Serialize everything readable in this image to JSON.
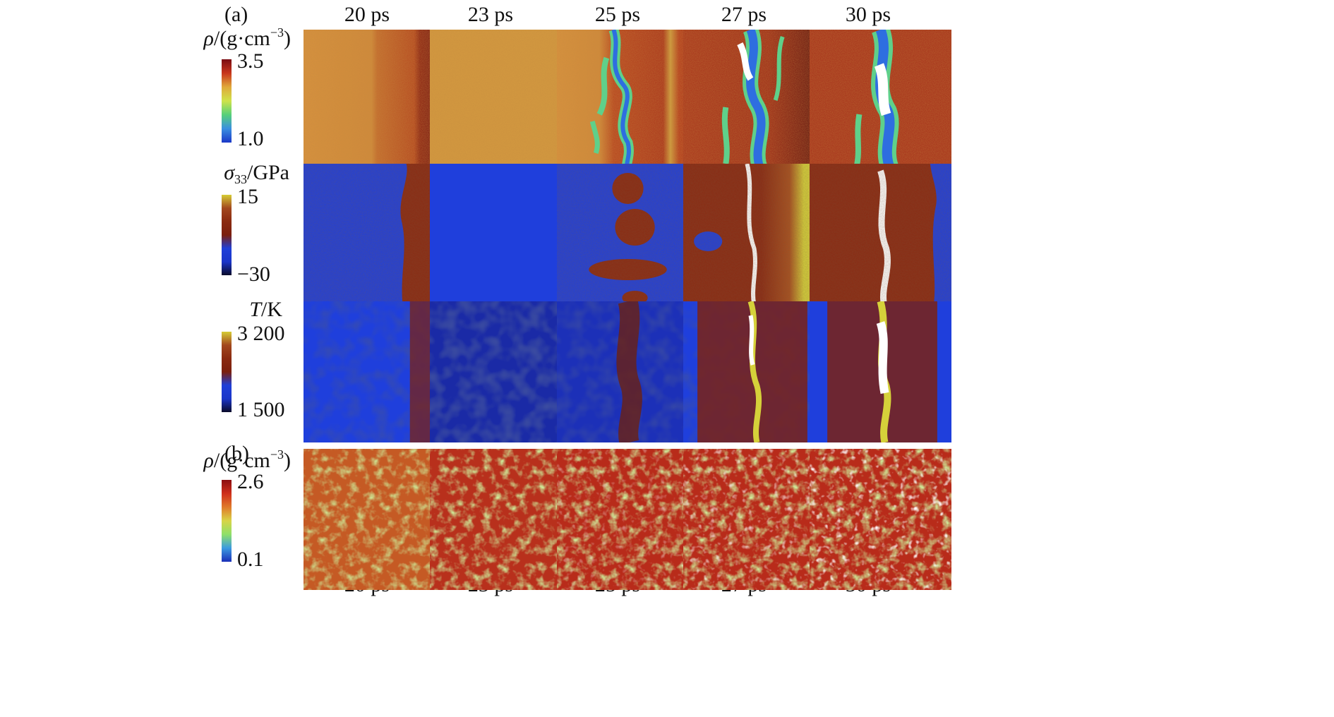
{
  "figure": {
    "panel_a_label": "(a)",
    "panel_b_label": "(b)",
    "times": [
      "20 ps",
      "23 ps",
      "25 ps",
      "27 ps",
      "30 ps"
    ],
    "rows": [
      {
        "quantity": "density",
        "label": {
          "sym": "ρ",
          "text": "/(g·cm",
          "sup": "−3",
          "tail": ")"
        },
        "colorbar": {
          "max": "3.5",
          "min": "1.0",
          "colors": [
            "#7a0c12",
            "#c8361d",
            "#e0a93a",
            "#cfe34a",
            "#56d07a",
            "#3a8fe0",
            "#1b38c8"
          ]
        }
      },
      {
        "quantity": "stress",
        "label": {
          "sym": "σ",
          "sub": "33",
          "text": "/GPa"
        },
        "colorbar": {
          "max": "15",
          "min": "−30",
          "colors": [
            "#d6cc35",
            "#a2481f",
            "#8a2a10",
            "#7b1f0e",
            "#1f3fd8",
            "#1a35c9",
            "#0a0a2a"
          ]
        }
      },
      {
        "quantity": "temperature",
        "label": {
          "sym": "T",
          "text": "/K"
        },
        "colorbar": {
          "max": "3 200",
          "min": "1 500",
          "colors": [
            "#d6cc35",
            "#a2481f",
            "#8a2a10",
            "#7b1f0e",
            "#1f3fd8",
            "#1a35c9",
            "#0a0a2a"
          ]
        }
      }
    ],
    "panel_b": {
      "label": {
        "sym": "ρ",
        "text": "/(g·cm",
        "sup": "−3",
        "tail": ")"
      },
      "colorbar": {
        "max": "2.6",
        "min": "0.1",
        "colors": [
          "#8b0e10",
          "#cf2f1b",
          "#e07a2a",
          "#d8d447",
          "#8ee06a",
          "#3b9ae0",
          "#1a2fb8"
        ]
      }
    },
    "colors": {
      "density_orange": "#d8923d",
      "density_red": "#b0301c",
      "density_dark": "#6c1410",
      "shock_blue": "#1f3fdc",
      "compressed_brown": "#8a2a12",
      "hot_yellow": "#d5d13a",
      "cold_navy": "#101c70",
      "void_white": "#ffffff",
      "green": "#a6dc55"
    }
  }
}
